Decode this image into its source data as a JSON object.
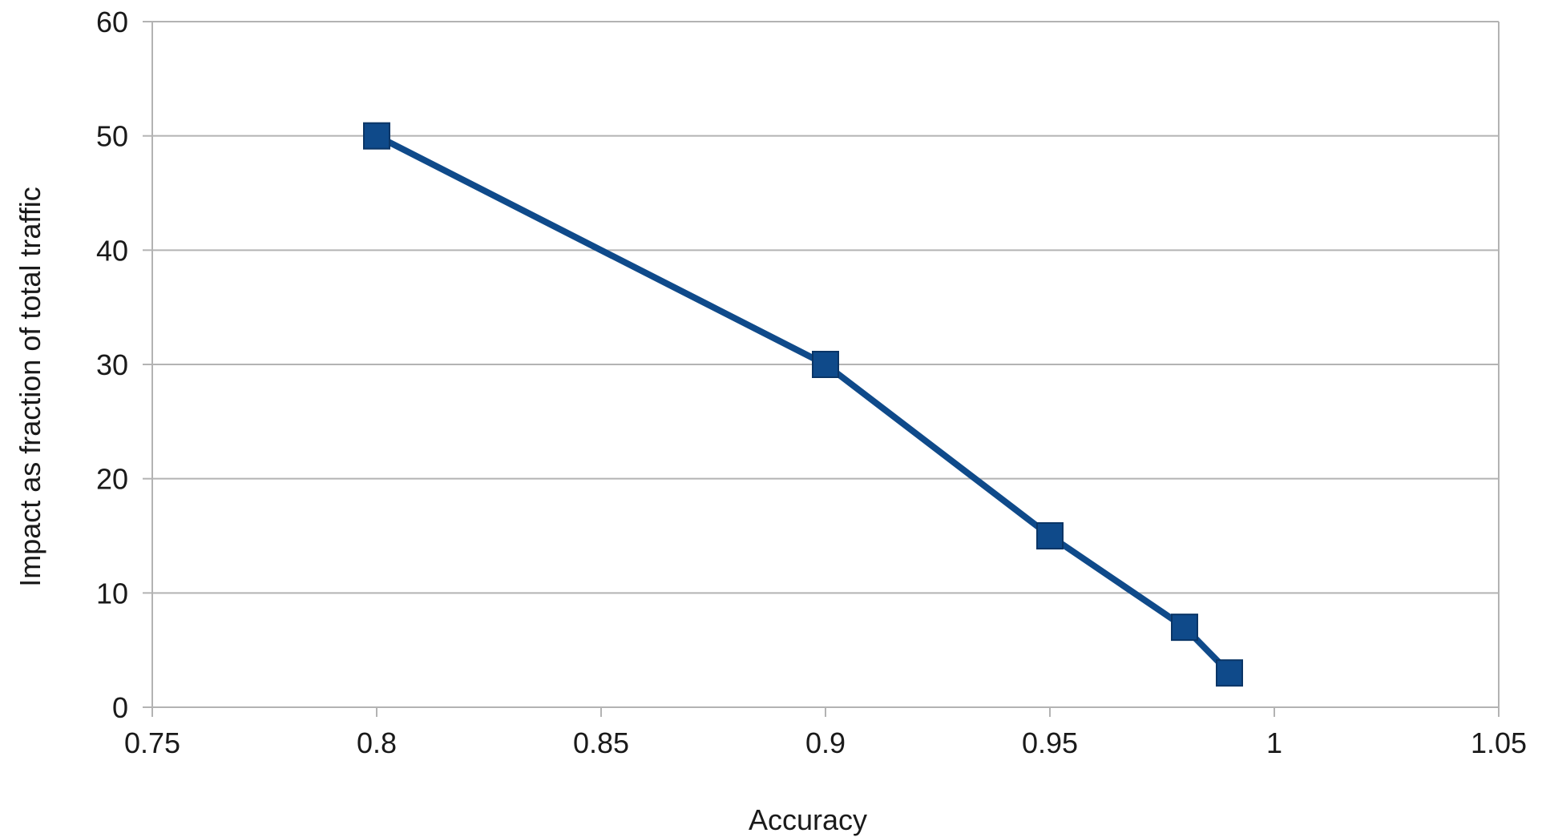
{
  "chart_data": {
    "type": "line",
    "title": "",
    "xlabel": "Accuracy",
    "ylabel": "Impact as fraction of total traffic",
    "xlim": [
      0.75,
      1.05
    ],
    "ylim": [
      0,
      60
    ],
    "xticks": [
      0.75,
      0.8,
      0.85,
      0.9,
      0.95,
      1,
      1.05
    ],
    "xtick_labels": [
      "0.75",
      "0.8",
      "0.85",
      "0.9",
      "0.95",
      "1",
      "1.05"
    ],
    "yticks": [
      0,
      10,
      20,
      30,
      40,
      50,
      60
    ],
    "ytick_labels": [
      "0",
      "10",
      "20",
      "30",
      "40",
      "50",
      "60"
    ],
    "grid": "horizontal",
    "legend": "none",
    "series": [
      {
        "color": "#0f4a8a",
        "marker": "square",
        "x": [
          0.8,
          0.9,
          0.95,
          0.98,
          0.99
        ],
        "y": [
          50,
          30,
          15,
          7,
          3
        ]
      }
    ]
  }
}
